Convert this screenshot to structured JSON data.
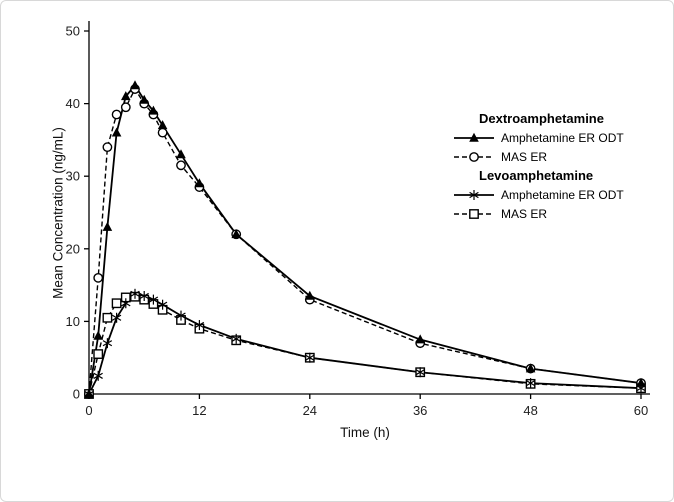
{
  "figure": {
    "background": "#ffffff",
    "border_color": "#d8d8d8",
    "line_color": "#000000"
  },
  "chart_data": {
    "type": "line",
    "title": "",
    "xlabel": "Time (h)",
    "ylabel": "Mean Concentration (ng/mL)",
    "xlim": [
      0,
      60
    ],
    "ylim": [
      0,
      50
    ],
    "xticks": [
      0,
      12,
      24,
      36,
      48,
      60
    ],
    "yticks": [
      0,
      10,
      20,
      30,
      40,
      50
    ],
    "grid": false,
    "legend_position": "right-center",
    "groups": [
      "Dextroamphetamine",
      "Levoamphetamine"
    ],
    "x": [
      0,
      1,
      2,
      3,
      4,
      5,
      6,
      7,
      8,
      10,
      12,
      16,
      24,
      36,
      48,
      60
    ],
    "series": [
      {
        "label": "Amphetamine ER ODT",
        "group": "Dextroamphetamine",
        "marker": "filled-triangle",
        "line": "solid",
        "values": [
          0,
          8,
          23,
          36,
          41,
          42.5,
          40.5,
          39,
          37,
          33,
          29,
          22,
          13.5,
          7.5,
          3.5,
          1.5
        ]
      },
      {
        "label": "MAS ER",
        "group": "Dextroamphetamine",
        "marker": "open-circle",
        "line": "dashed",
        "values": [
          0,
          16,
          34,
          38.5,
          39.5,
          42,
          40,
          38.5,
          36,
          31.5,
          28.5,
          22,
          13,
          7,
          3.5,
          1.5
        ]
      },
      {
        "label": "Amphetamine ER ODT",
        "group": "Levoamphetamine",
        "marker": "asterisk",
        "line": "solid",
        "values": [
          0,
          2.5,
          7,
          10.5,
          12.5,
          13.8,
          13.5,
          13,
          12.3,
          10.8,
          9.5,
          7.6,
          5,
          3,
          1.5,
          0.8
        ]
      },
      {
        "label": "MAS ER",
        "group": "Levoamphetamine",
        "marker": "open-square",
        "line": "dashed",
        "values": [
          0,
          5.5,
          10.5,
          12.5,
          13.3,
          13.4,
          13,
          12.4,
          11.6,
          10.2,
          9,
          7.4,
          5,
          3,
          1.4,
          0.8
        ]
      }
    ]
  }
}
